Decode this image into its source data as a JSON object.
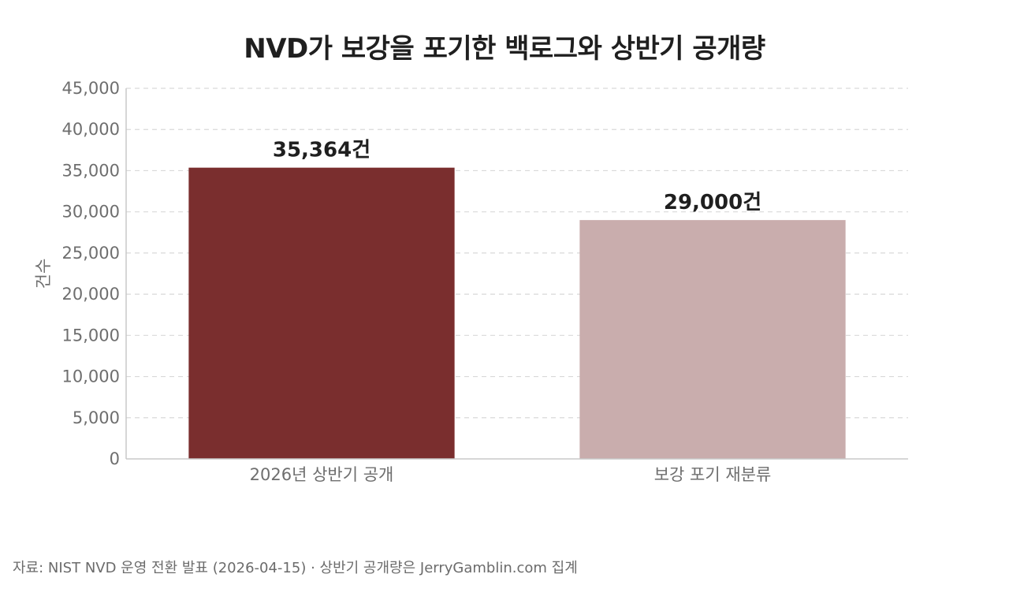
{
  "chart_data": {
    "type": "bar",
    "title": "NVD가 보강을 포기한 백로그와 상반기 공개량",
    "ylabel": "건수",
    "xlabel": "",
    "ylim": [
      0,
      45000
    ],
    "yticks": [
      0,
      5000,
      10000,
      15000,
      20000,
      25000,
      30000,
      35000,
      40000,
      45000
    ],
    "ytick_labels": [
      "0",
      "5,000",
      "10,000",
      "15,000",
      "20,000",
      "25,000",
      "30,000",
      "35,000",
      "40,000",
      "45,000"
    ],
    "grid": true,
    "categories": [
      "2026년 상반기 공개",
      "보강 포기 재분류"
    ],
    "values": [
      35364,
      29000
    ],
    "data_labels": [
      "35,364건",
      "29,000건"
    ],
    "colors": [
      "#7a2e2e",
      "#c9adad"
    ]
  },
  "footer": {
    "source": "자료: NIST NVD 운영 전환 발표 (2026-04-15) · 상반기 공개량은 JerryGamblin.com 집계"
  }
}
